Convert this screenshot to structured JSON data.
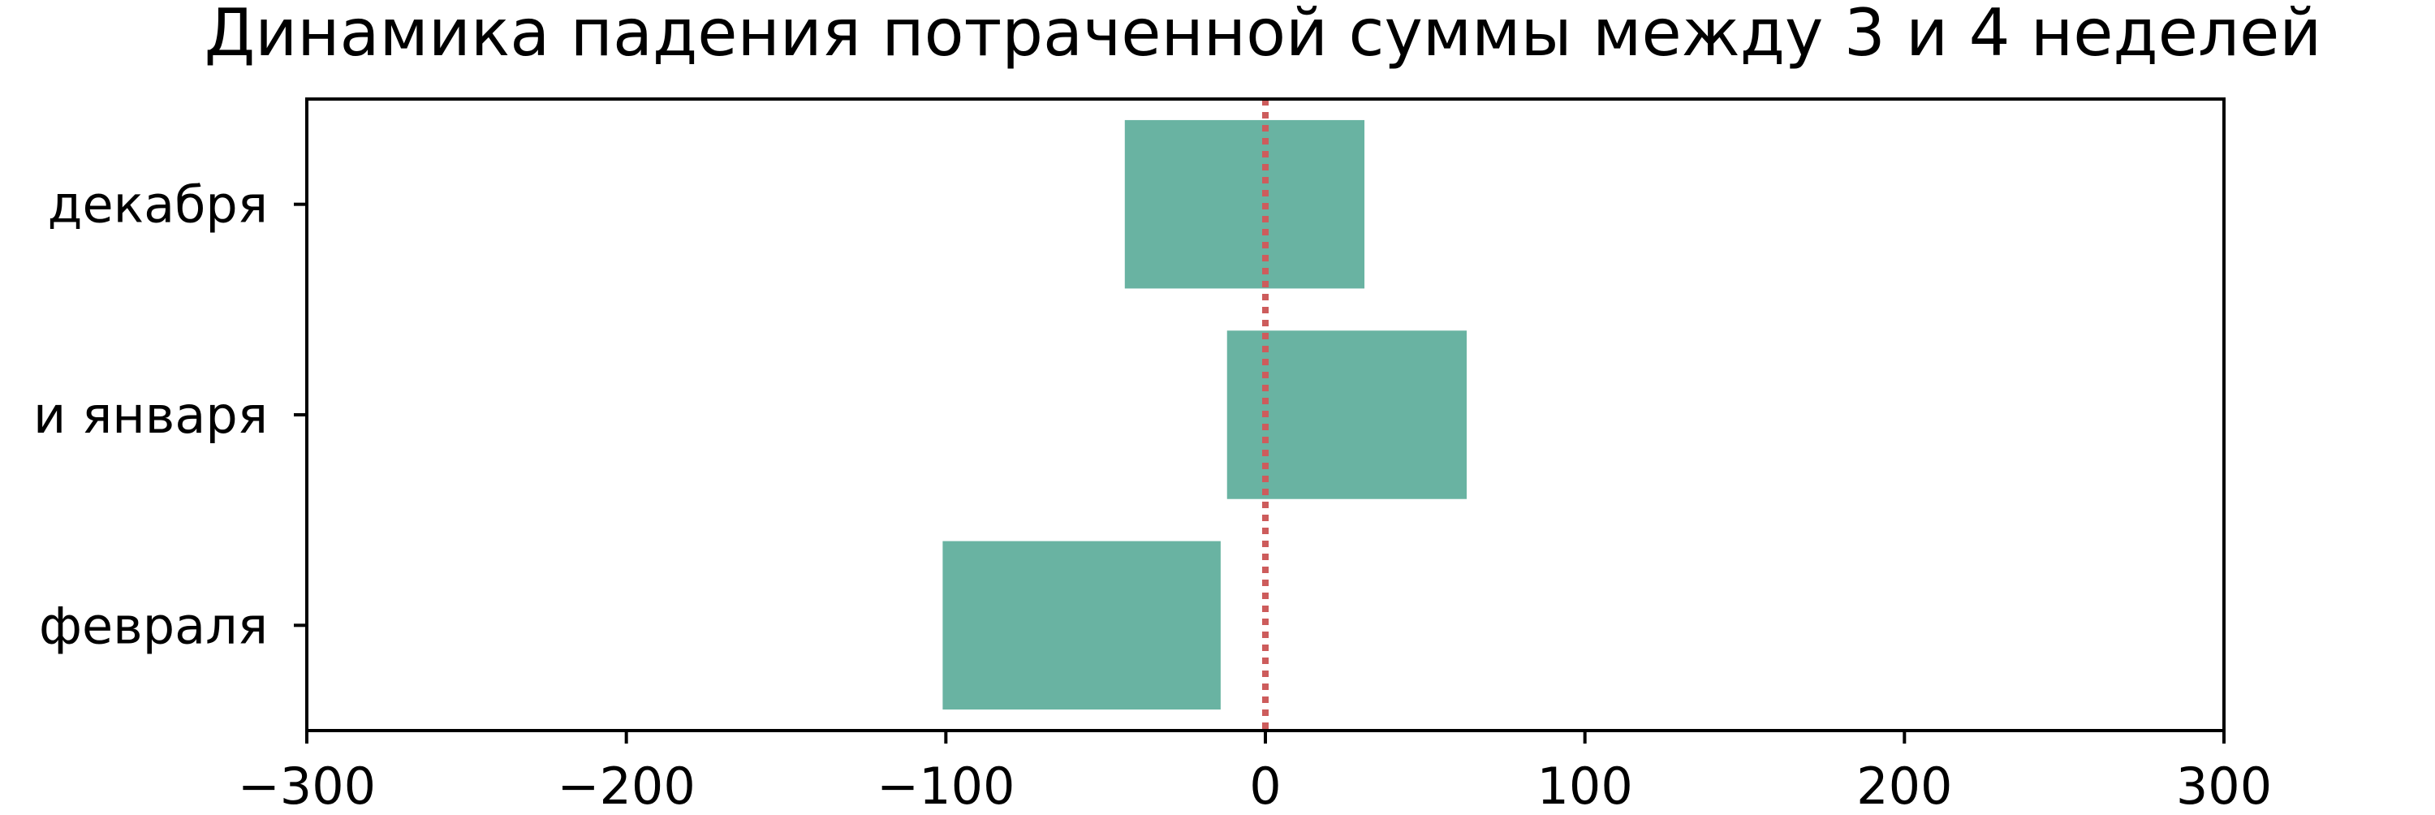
{
  "chart_data": {
    "type": "bar",
    "orientation": "horizontal",
    "title": "Динамика падения потраченной суммы между 3 и 4 неделей",
    "xlabel": "",
    "ylabel": "",
    "categories": [
      "декабря",
      "и января",
      "февраля"
    ],
    "series": [
      {
        "ranges": [
          [
            -44,
            31
          ],
          [
            -12,
            63
          ],
          [
            -101,
            -14
          ]
        ]
      }
    ],
    "xlim": [
      -300,
      300
    ],
    "xticks": [
      -300,
      -200,
      -100,
      0,
      100,
      200,
      300
    ],
    "xtick_labels": [
      "−300",
      "−200",
      "−100",
      "0",
      "100",
      "200",
      "300"
    ],
    "reference_line": {
      "x": 0,
      "style": "dotted"
    },
    "grid": false,
    "colors": {
      "bar": "#69b3a2",
      "reference_line": "#cd5c5c",
      "axis": "#000000"
    }
  }
}
